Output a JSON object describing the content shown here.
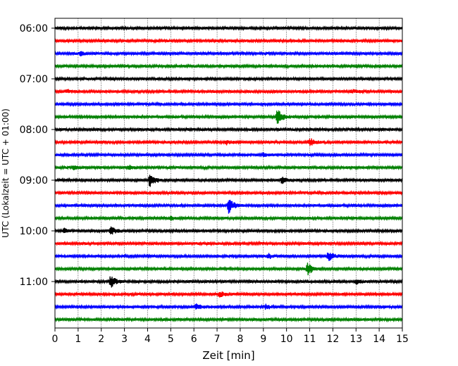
{
  "chart_data": {
    "type": "line",
    "title": "",
    "xlabel": "Zeit  [min]",
    "ylabel": "UTC (Lokalzeit = UTC + 01:00)",
    "xlim": [
      0,
      15
    ],
    "x_ticks": [
      0,
      1,
      2,
      3,
      4,
      5,
      6,
      7,
      8,
      9,
      10,
      11,
      12,
      13,
      14,
      15
    ],
    "x_tick_labels": [
      "0",
      "1",
      "2",
      "3",
      "4",
      "5",
      "6",
      "7",
      "8",
      "9",
      "10",
      "11",
      "12",
      "13",
      "14",
      "15"
    ],
    "y_tick_labels": [
      "06:00",
      "07:00",
      "08:00",
      "09:00",
      "10:00",
      "11:00"
    ],
    "grid": "vertical dotted",
    "trace_minutes": 15,
    "traces": [
      {
        "start": "06:00",
        "color": "#000000",
        "events": []
      },
      {
        "start": "06:15",
        "color": "#ff0000",
        "events": []
      },
      {
        "start": "06:30",
        "color": "#0000ff",
        "events": [
          [
            1.1,
            0.3
          ]
        ]
      },
      {
        "start": "06:45",
        "color": "#008000",
        "events": []
      },
      {
        "start": "07:00",
        "color": "#000000",
        "events": []
      },
      {
        "start": "07:15",
        "color": "#ff0000",
        "events": [
          [
            0.5,
            0.25
          ],
          [
            12.8,
            0.25
          ]
        ]
      },
      {
        "start": "07:30",
        "color": "#0000ff",
        "events": []
      },
      {
        "start": "07:45",
        "color": "#008000",
        "events": [
          [
            9.6,
            1.2
          ]
        ]
      },
      {
        "start": "08:00",
        "color": "#000000",
        "events": []
      },
      {
        "start": "08:15",
        "color": "#ff0000",
        "events": [
          [
            7.4,
            0.3
          ],
          [
            11.0,
            0.6
          ]
        ]
      },
      {
        "start": "08:30",
        "color": "#0000ff",
        "events": [
          [
            9.0,
            0.3
          ]
        ]
      },
      {
        "start": "08:45",
        "color": "#008000",
        "events": [
          [
            0.8,
            0.3
          ],
          [
            3.2,
            0.3
          ]
        ]
      },
      {
        "start": "09:00",
        "color": "#000000",
        "events": [
          [
            4.1,
            1.1
          ],
          [
            9.8,
            0.5
          ]
        ]
      },
      {
        "start": "09:15",
        "color": "#ff0000",
        "events": []
      },
      {
        "start": "09:30",
        "color": "#0000ff",
        "events": [
          [
            7.5,
            1.2
          ]
        ]
      },
      {
        "start": "09:45",
        "color": "#008000",
        "events": [
          [
            5.0,
            0.3
          ]
        ]
      },
      {
        "start": "10:00",
        "color": "#000000",
        "events": [
          [
            0.4,
            0.3
          ],
          [
            2.4,
            0.6
          ]
        ]
      },
      {
        "start": "10:15",
        "color": "#ff0000",
        "events": []
      },
      {
        "start": "10:30",
        "color": "#0000ff",
        "events": [
          [
            9.2,
            0.4
          ],
          [
            11.8,
            0.7
          ]
        ]
      },
      {
        "start": "10:45",
        "color": "#008000",
        "events": [
          [
            10.9,
            1.0
          ]
        ]
      },
      {
        "start": "11:00",
        "color": "#000000",
        "events": [
          [
            2.4,
            1.0
          ],
          [
            13.0,
            0.4
          ]
        ]
      },
      {
        "start": "11:15",
        "color": "#ff0000",
        "events": [
          [
            7.1,
            0.5
          ]
        ]
      },
      {
        "start": "11:30",
        "color": "#0000ff",
        "events": [
          [
            6.1,
            0.4
          ],
          [
            9.1,
            0.3
          ]
        ]
      },
      {
        "start": "11:45",
        "color": "#008000",
        "events": []
      }
    ]
  }
}
